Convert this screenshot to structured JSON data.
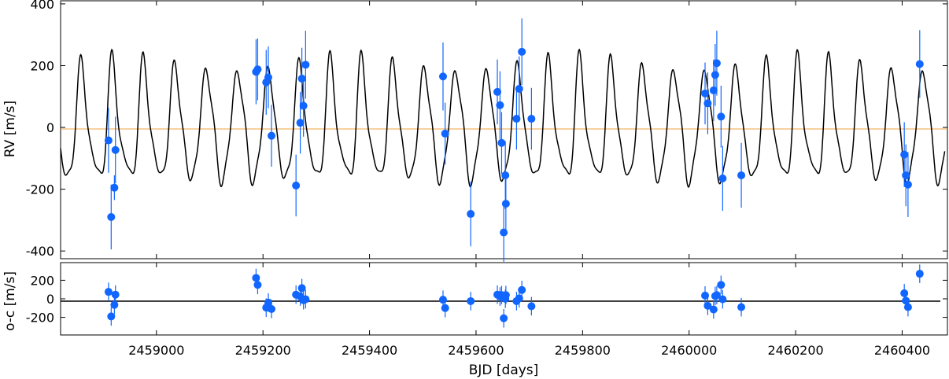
{
  "chart_data": [
    {
      "type": "scatter",
      "panel": "top",
      "xlabel": "",
      "ylabel": "RV [m/s]",
      "xlim": [
        2458820,
        2460485
      ],
      "ylim": [
        -425,
        410
      ],
      "yticks": [
        -400,
        -200,
        0,
        200,
        400
      ],
      "colors": {
        "points": "#1166ff",
        "errorbars": "#1166ff",
        "model": "#000000",
        "zero_line": "#f0a040"
      },
      "series": [
        {
          "kind": "observations",
          "x": [
            2458910,
            2458915,
            2458921,
            2458923,
            2459187,
            2459190,
            2459206,
            2459210,
            2459216,
            2459262,
            2459270,
            2459273,
            2459276,
            2459280,
            2459538,
            2459542,
            2459590,
            2459640,
            2459645,
            2459648,
            2459652,
            2459655,
            2459656,
            2459676,
            2459681,
            2459686,
            2459704,
            2460030,
            2460035,
            2460046,
            2460049,
            2460052,
            2460060,
            2460063,
            2460098,
            2460404,
            2460407,
            2460411,
            2460433
          ],
          "y": [
            -42,
            -290,
            -195,
            -73,
            180,
            188,
            146,
            162,
            -27,
            -188,
            15,
            158,
            70,
            203,
            165,
            -20,
            -280,
            115,
            72,
            -50,
            -340,
            -155,
            -247,
            28,
            125,
            245,
            28,
            110,
            78,
            120,
            170,
            208,
            35,
            -165,
            -155,
            -88,
            -155,
            -185,
            205
          ],
          "yerr": [
            105,
            105,
            40,
            108,
            105,
            100,
            105,
            100,
            100,
            100,
            100,
            100,
            100,
            110,
            110,
            100,
            105,
            105,
            110,
            100,
            95,
            110,
            100,
            100,
            105,
            108,
            100,
            100,
            100,
            100,
            100,
            105,
            100,
            105,
            105,
            105,
            100,
            105,
            110
          ]
        }
      ]
    },
    {
      "type": "scatter",
      "panel": "bottom",
      "xlabel": "BJD [days]",
      "ylabel": "o-c [m/s]",
      "xlim": [
        2458820,
        2460485
      ],
      "ylim": [
        -390,
        390
      ],
      "xticks": [
        2459000,
        2459200,
        2459400,
        2459600,
        2459800,
        2460000,
        2460200,
        2460400
      ],
      "yticks": [
        -200,
        0,
        200
      ],
      "series": [
        {
          "kind": "residuals",
          "x": [
            2458910,
            2458915,
            2458921,
            2458923,
            2459187,
            2459190,
            2459206,
            2459210,
            2459216,
            2459262,
            2459270,
            2459273,
            2459276,
            2459280,
            2459538,
            2459542,
            2459590,
            2459640,
            2459645,
            2459648,
            2459652,
            2459655,
            2459656,
            2459676,
            2459681,
            2459686,
            2459704,
            2460030,
            2460035,
            2460046,
            2460049,
            2460052,
            2460060,
            2460063,
            2460098,
            2460404,
            2460407,
            2460411,
            2460433
          ],
          "y": [
            75,
            -190,
            -65,
            45,
            225,
            150,
            -95,
            -40,
            -110,
            45,
            25,
            115,
            -15,
            -5,
            -10,
            -100,
            -25,
            45,
            25,
            40,
            -210,
            0,
            40,
            -25,
            5,
            95,
            -80,
            35,
            -75,
            -115,
            30,
            40,
            150,
            -5,
            -90,
            60,
            -20,
            -90,
            270
          ],
          "yerr": [
            100,
            100,
            100,
            100,
            100,
            100,
            100,
            100,
            100,
            100,
            100,
            100,
            100,
            100,
            100,
            100,
            100,
            100,
            100,
            100,
            100,
            100,
            100,
            100,
            100,
            100,
            100,
            100,
            100,
            100,
            100,
            100,
            100,
            100,
            100,
            100,
            100,
            100,
            100
          ]
        }
      ]
    }
  ]
}
